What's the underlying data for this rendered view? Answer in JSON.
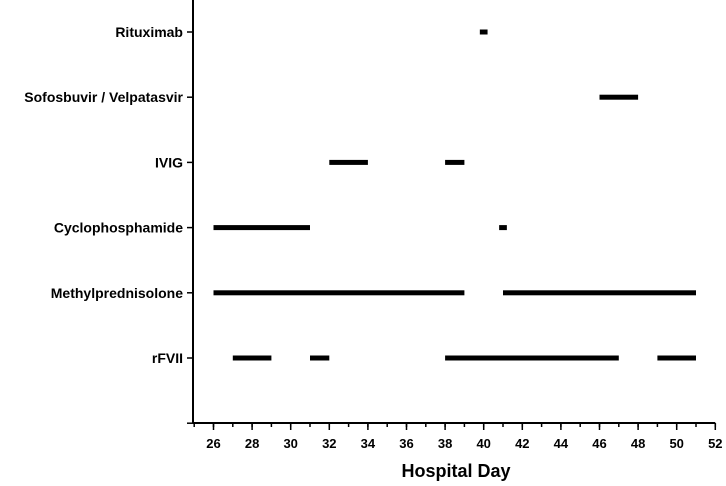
{
  "chart_data": {
    "type": "timeline",
    "xlabel": "Hospital Day",
    "xlim": [
      25,
      52
    ],
    "x_ticks": [
      26,
      28,
      30,
      32,
      34,
      36,
      38,
      40,
      42,
      44,
      46,
      48,
      50,
      52
    ],
    "x_tick_labels": [
      "26",
      "28",
      "30",
      "32",
      "34",
      "36",
      "38",
      "40",
      "42",
      "44",
      "46",
      "48",
      "50",
      "52"
    ],
    "x_minor_step": 1,
    "categories": [
      "Rituximab",
      "Sofosbuvir / Velpatasvir",
      "IVIG",
      "Cyclophosphamide",
      "Methylprednisolone",
      "rFVII"
    ],
    "series": [
      {
        "category": "Rituximab",
        "intervals": [
          [
            39.8,
            40.2
          ]
        ]
      },
      {
        "category": "Sofosbuvir / Velpatasvir",
        "intervals": [
          [
            46,
            48
          ]
        ]
      },
      {
        "category": "IVIG",
        "intervals": [
          [
            32,
            34
          ],
          [
            38,
            39
          ]
        ]
      },
      {
        "category": "Cyclophosphamide",
        "intervals": [
          [
            26,
            31
          ],
          [
            40.8,
            41.2
          ]
        ]
      },
      {
        "category": "Methylprednisolone",
        "intervals": [
          [
            26,
            39
          ],
          [
            41,
            51
          ]
        ]
      },
      {
        "category": "rFVII",
        "intervals": [
          [
            27,
            29
          ],
          [
            31,
            32
          ],
          [
            38,
            47
          ],
          [
            49,
            51
          ]
        ]
      }
    ],
    "bar_color": "#000000",
    "grid": false,
    "legend": "none"
  }
}
